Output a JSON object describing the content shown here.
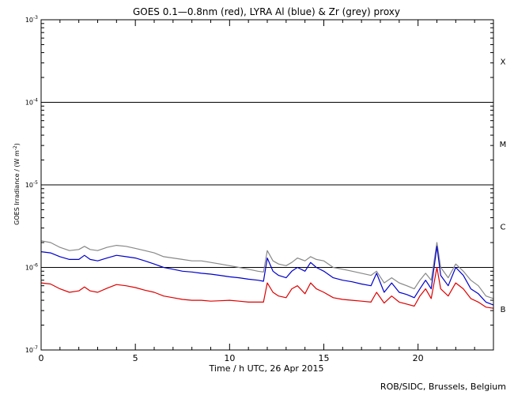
{
  "chart_data": {
    "type": "line",
    "title": "GOES 0.1—0.8nm (red), LYRA Al (blue) & Zr (grey) proxy",
    "xlabel": "Time / h UTC, 26 Apr 2015",
    "ylabel_main": "GOES Irradiance / (W m",
    "ylabel_sup": "-2",
    "ylabel_end": ")",
    "credit": "ROB/SIDC, Brussels, Belgium",
    "xlim": [
      0,
      24
    ],
    "ylim": [
      1e-07,
      0.001
    ],
    "y_scale": "log",
    "x_ticks": [
      0,
      5,
      10,
      15,
      20
    ],
    "y_ticks": [
      {
        "value": 1e-07,
        "base": "10",
        "exp": "-7"
      },
      {
        "value": 1e-06,
        "base": "10",
        "exp": "-6"
      },
      {
        "value": 1e-05,
        "base": "10",
        "exp": "-5"
      },
      {
        "value": 0.0001,
        "base": "10",
        "exp": "-4"
      },
      {
        "value": 0.001,
        "base": "10",
        "exp": "-3"
      }
    ],
    "class_lines": [
      1e-06,
      1e-05,
      0.0001
    ],
    "class_labels": [
      {
        "label": "B",
        "value": 3.16e-07
      },
      {
        "label": "C",
        "value": 3.16e-06
      },
      {
        "label": "M",
        "value": 3.16e-05
      },
      {
        "label": "X",
        "value": 0.000316
      }
    ],
    "series": [
      {
        "color": "#888888",
        "x": [
          0,
          0.5,
          1,
          1.5,
          2,
          2.3,
          2.6,
          3,
          3.5,
          4,
          4.5,
          5,
          5.5,
          6,
          6.5,
          7,
          7.5,
          8,
          8.5,
          9,
          9.5,
          10,
          10.5,
          11,
          11.5,
          11.8,
          12.0,
          12.3,
          12.6,
          13,
          13.3,
          13.6,
          14,
          14.3,
          14.6,
          15,
          15.5,
          16,
          16.5,
          17,
          17.5,
          17.8,
          18.2,
          18.6,
          19,
          19.4,
          19.8,
          20.1,
          20.4,
          20.7,
          21.0,
          21.2,
          21.6,
          22,
          22.4,
          22.8,
          23.2,
          23.6,
          24
        ],
        "y": [
          2.1e-06,
          2e-06,
          1.75e-06,
          1.6e-06,
          1.65e-06,
          1.8e-06,
          1.65e-06,
          1.6e-06,
          1.75e-06,
          1.85e-06,
          1.8e-06,
          1.7e-06,
          1.6e-06,
          1.5e-06,
          1.35e-06,
          1.3e-06,
          1.25e-06,
          1.2e-06,
          1.2e-06,
          1.15e-06,
          1.1e-06,
          1.05e-06,
          1e-06,
          9.5e-07,
          9e-07,
          8.8e-07,
          1.6e-06,
          1.2e-06,
          1.1e-06,
          1.05e-06,
          1.15e-06,
          1.3e-06,
          1.2e-06,
          1.35e-06,
          1.25e-06,
          1.2e-06,
          1e-06,
          9.5e-07,
          9e-07,
          8.5e-07,
          8e-07,
          9e-07,
          6.5e-07,
          7.5e-07,
          6.5e-07,
          6e-07,
          5.5e-07,
          7e-07,
          8.5e-07,
          7e-07,
          2e-06,
          1e-06,
          7.5e-07,
          1.1e-06,
          9e-07,
          7e-07,
          6e-07,
          4.5e-07,
          4.2e-07
        ]
      },
      {
        "color": "#0000cc",
        "x": [
          0,
          0.5,
          1,
          1.5,
          2,
          2.3,
          2.6,
          3,
          3.5,
          4,
          4.5,
          5,
          5.5,
          6,
          6.5,
          7,
          7.5,
          8,
          8.5,
          9,
          9.5,
          10,
          10.5,
          11,
          11.5,
          11.8,
          12.0,
          12.3,
          12.6,
          13,
          13.3,
          13.6,
          14,
          14.3,
          14.6,
          15,
          15.5,
          16,
          16.5,
          17,
          17.5,
          17.8,
          18.2,
          18.6,
          19,
          19.4,
          19.8,
          20.1,
          20.4,
          20.7,
          21.0,
          21.2,
          21.6,
          22,
          22.4,
          22.8,
          23.2,
          23.6,
          24
        ],
        "y": [
          1.55e-06,
          1.5e-06,
          1.35e-06,
          1.25e-06,
          1.25e-06,
          1.4e-06,
          1.25e-06,
          1.2e-06,
          1.3e-06,
          1.4e-06,
          1.35e-06,
          1.3e-06,
          1.2e-06,
          1.1e-06,
          1e-06,
          9.5e-07,
          9e-07,
          8.8e-07,
          8.5e-07,
          8.3e-07,
          8e-07,
          7.7e-07,
          7.5e-07,
          7.2e-07,
          7e-07,
          6.8e-07,
          1.3e-06,
          9e-07,
          8e-07,
          7.5e-07,
          9e-07,
          1e-06,
          9e-07,
          1.15e-06,
          1e-06,
          9e-07,
          7.5e-07,
          7e-07,
          6.7e-07,
          6.3e-07,
          6e-07,
          8.5e-07,
          5e-07,
          6.5e-07,
          5e-07,
          4.7e-07,
          4.3e-07,
          5.5e-07,
          7e-07,
          5.5e-07,
          1.8e-06,
          8e-07,
          6e-07,
          1e-06,
          8e-07,
          5.5e-07,
          4.8e-07,
          3.8e-07,
          3.5e-07
        ]
      },
      {
        "color": "#dd0000",
        "x": [
          0,
          0.5,
          1,
          1.5,
          2,
          2.3,
          2.6,
          3,
          3.5,
          4,
          4.5,
          5,
          5.5,
          6,
          6.5,
          7,
          7.5,
          8,
          8.5,
          9,
          9.5,
          10,
          10.5,
          11,
          11.5,
          11.8,
          12.0,
          12.3,
          12.6,
          13,
          13.3,
          13.6,
          14,
          14.3,
          14.6,
          15,
          15.5,
          16,
          16.5,
          17,
          17.5,
          17.8,
          18.2,
          18.6,
          19,
          19.4,
          19.8,
          20.1,
          20.4,
          20.7,
          21.0,
          21.2,
          21.6,
          22,
          22.4,
          22.8,
          23.2,
          23.6,
          24
        ],
        "y": [
          6.5e-07,
          6.3e-07,
          5.5e-07,
          5e-07,
          5.2e-07,
          5.8e-07,
          5.2e-07,
          5e-07,
          5.6e-07,
          6.2e-07,
          6e-07,
          5.7e-07,
          5.3e-07,
          5e-07,
          4.5e-07,
          4.3e-07,
          4.1e-07,
          4e-07,
          4e-07,
          3.9e-07,
          3.95e-07,
          4e-07,
          3.9e-07,
          3.8e-07,
          3.8e-07,
          3.8e-07,
          6.5e-07,
          5e-07,
          4.5e-07,
          4.3e-07,
          5.5e-07,
          6e-07,
          4.8e-07,
          6.5e-07,
          5.5e-07,
          5e-07,
          4.3e-07,
          4.1e-07,
          4e-07,
          3.9e-07,
          3.8e-07,
          5e-07,
          3.7e-07,
          4.5e-07,
          3.8e-07,
          3.6e-07,
          3.4e-07,
          4.5e-07,
          5.5e-07,
          4.2e-07,
          1e-06,
          5.5e-07,
          4.5e-07,
          6.5e-07,
          5.5e-07,
          4.2e-07,
          3.8e-07,
          3.3e-07,
          3.2e-07
        ]
      }
    ]
  }
}
